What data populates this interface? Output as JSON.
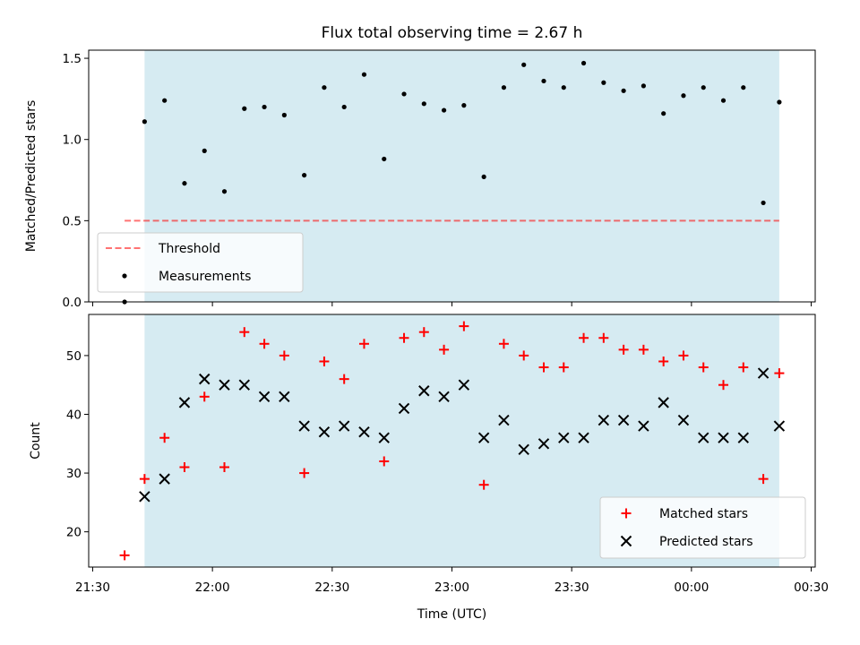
{
  "colors": {
    "shade": "#add8e6",
    "threshold": "#ff0000",
    "measurement": "#000000",
    "matched": "#ff0000",
    "predicted": "#000000"
  },
  "chart_data": [
    {
      "type": "scatter",
      "title": "Flux total observing time = 2.67 h",
      "xlabel": "",
      "ylabel": "Matched/Predicted stars",
      "xlim": [
        "21:29",
        "00:31"
      ],
      "ylim": [
        0,
        1.55
      ],
      "y_ticks": [
        0.0,
        0.5,
        1.0,
        1.5
      ],
      "y_tick_labels": [
        "0.0",
        "0.5",
        "1.0",
        "1.5"
      ],
      "shaded_span": [
        "21:43",
        "00:22"
      ],
      "threshold": {
        "name": "Threshold",
        "value": 0.5,
        "x_range": [
          "21:38",
          "00:22"
        ],
        "style": "dashed"
      },
      "legend": {
        "placement": "lower-left",
        "entries": [
          "Threshold",
          "Measurements"
        ]
      },
      "series": [
        {
          "name": "Measurements",
          "marker": "dot",
          "x": [
            "21:38",
            "21:43",
            "21:48",
            "21:53",
            "21:58",
            "22:03",
            "22:08",
            "22:13",
            "22:18",
            "22:23",
            "22:28",
            "22:33",
            "22:38",
            "22:43",
            "22:48",
            "22:53",
            "22:58",
            "23:03",
            "23:08",
            "23:13",
            "23:18",
            "23:23",
            "23:28",
            "23:33",
            "23:38",
            "23:43",
            "23:48",
            "23:53",
            "23:58",
            "00:03",
            "00:08",
            "00:13",
            "00:18",
            "00:22"
          ],
          "y": [
            0.0,
            1.11,
            1.24,
            0.73,
            0.93,
            0.68,
            1.19,
            1.2,
            1.15,
            0.78,
            1.32,
            1.2,
            1.4,
            0.88,
            1.28,
            1.22,
            1.18,
            1.21,
            0.77,
            1.32,
            1.46,
            1.36,
            1.32,
            1.47,
            1.35,
            1.3,
            1.33,
            1.16,
            1.27,
            1.32,
            1.24,
            1.32,
            0.61,
            1.23
          ]
        }
      ]
    },
    {
      "type": "scatter",
      "title": "",
      "xlabel": "Time (UTC)",
      "ylabel": "Count",
      "xlim": [
        "21:29",
        "00:31"
      ],
      "ylim": [
        14,
        57
      ],
      "y_ticks": [
        20,
        30,
        40,
        50
      ],
      "y_tick_labels": [
        "20",
        "30",
        "40",
        "50"
      ],
      "x_ticks": [
        "21:30",
        "22:00",
        "22:30",
        "23:00",
        "23:30",
        "00:00",
        "00:30"
      ],
      "x_tick_labels": [
        "21:30",
        "22:00",
        "22:30",
        "23:00",
        "23:30",
        "00:00",
        "00:30"
      ],
      "shaded_span": [
        "21:43",
        "00:22"
      ],
      "legend": {
        "placement": "lower-right",
        "entries": [
          "Matched stars",
          "Predicted stars"
        ]
      },
      "series": [
        {
          "name": "Matched stars",
          "marker": "plus",
          "x": [
            "21:38",
            "21:43",
            "21:48",
            "21:53",
            "21:58",
            "22:03",
            "22:08",
            "22:13",
            "22:18",
            "22:23",
            "22:28",
            "22:33",
            "22:38",
            "22:43",
            "22:48",
            "22:53",
            "22:58",
            "23:03",
            "23:08",
            "23:13",
            "23:18",
            "23:23",
            "23:28",
            "23:33",
            "23:38",
            "23:43",
            "23:48",
            "23:53",
            "23:58",
            "00:03",
            "00:08",
            "00:13",
            "00:18",
            "00:22"
          ],
          "y": [
            16,
            29,
            36,
            31,
            43,
            31,
            54,
            52,
            50,
            30,
            49,
            46,
            52,
            32,
            53,
            54,
            51,
            55,
            28,
            52,
            50,
            48,
            48,
            53,
            53,
            51,
            51,
            49,
            50,
            48,
            45,
            48,
            29,
            47
          ]
        },
        {
          "name": "Predicted stars",
          "marker": "x",
          "x": [
            "21:43",
            "21:48",
            "21:53",
            "21:58",
            "22:03",
            "22:08",
            "22:13",
            "22:18",
            "22:23",
            "22:28",
            "22:33",
            "22:38",
            "22:43",
            "22:48",
            "22:53",
            "22:58",
            "23:03",
            "23:08",
            "23:13",
            "23:18",
            "23:23",
            "23:28",
            "23:33",
            "23:38",
            "23:43",
            "23:48",
            "23:53",
            "23:58",
            "00:03",
            "00:08",
            "00:13",
            "00:18",
            "00:22"
          ],
          "y": [
            26,
            29,
            42,
            46,
            45,
            45,
            43,
            43,
            38,
            37,
            38,
            37,
            36,
            41,
            44,
            43,
            45,
            36,
            39,
            34,
            35,
            36,
            36,
            39,
            39,
            38,
            42,
            39,
            36,
            36,
            36,
            47,
            38
          ]
        }
      ]
    }
  ]
}
